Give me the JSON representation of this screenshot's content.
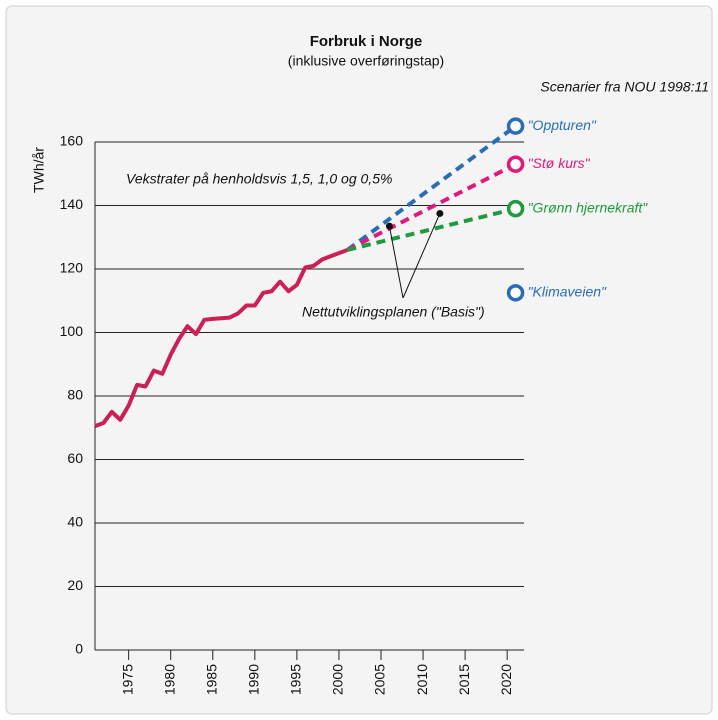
{
  "chart_data": {
    "type": "line",
    "title": "Forbruk i Norge",
    "subtitle": "(inklusive overføringstap)",
    "y_label": "TWh/år",
    "scenario_note": "Scenarier fra NOU 1998:11",
    "growth_note": "Vekstrater på henholdsvis 1,5, 1,0 og 0,5%",
    "basis_note": "Nettutviklingsplanen (\"Basis\")",
    "xlim": [
      1971,
      2022
    ],
    "xticks": [
      1975,
      1980,
      1985,
      1990,
      1995,
      2000,
      2005,
      2010,
      2015,
      2020
    ],
    "ylim": [
      0,
      160
    ],
    "yticks": [
      0,
      20,
      40,
      60,
      80,
      100,
      120,
      140,
      160
    ],
    "grid": true,
    "history": {
      "color": "#cc1f55",
      "x": [
        1971,
        1972,
        1973,
        1974,
        1975,
        1976,
        1977,
        1978,
        1979,
        1980,
        1981,
        1982,
        1983,
        1984,
        1985,
        1986,
        1987,
        1988,
        1989,
        1990,
        1991,
        1992,
        1993,
        1994,
        1995,
        1996,
        1997,
        1998,
        1999,
        2000,
        2001
      ],
      "values": [
        70.5,
        71.5,
        75,
        72.5,
        77,
        83.5,
        83,
        88,
        87,
        93,
        98,
        102,
        99.5,
        104,
        104.3,
        104.5,
        104.7,
        106,
        108.5,
        108.5,
        112.5,
        113,
        116,
        113,
        115,
        120.5,
        121,
        123,
        124,
        125,
        126
      ]
    },
    "series": [
      {
        "name": "\"Oppturen\"",
        "color": "#2a6db5",
        "x": [
          2001,
          2021
        ],
        "values": [
          126,
          165
        ]
      },
      {
        "name": "\"Stø kurs\"",
        "color": "#e0197d",
        "x": [
          2001,
          2021
        ],
        "values": [
          126,
          153
        ]
      },
      {
        "name": "\"Grønn hjernekraft\"",
        "color": "#1f9a3e",
        "x": [
          2001,
          2021
        ],
        "values": [
          126,
          139
        ]
      },
      {
        "name": "\"Klimaveien\"",
        "color": "#2a6db5",
        "x": [
          2021
        ],
        "values": [
          112.5
        ]
      }
    ],
    "basis_points": {
      "x": [
        2006,
        2012
      ],
      "values": [
        133.5,
        137.5
      ]
    }
  }
}
